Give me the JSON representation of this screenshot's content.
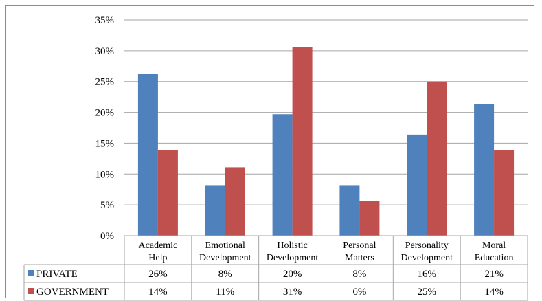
{
  "chart_data": {
    "type": "bar",
    "title": "",
    "xlabel": "",
    "ylabel": "",
    "ylim": [
      0,
      35
    ],
    "y_ticks": [
      "0%",
      "5%",
      "10%",
      "15%",
      "20%",
      "25%",
      "30%",
      "35%"
    ],
    "grid": true,
    "legend": "data-table",
    "categories": [
      [
        "Academic",
        "Help"
      ],
      [
        "Emotional",
        "Development"
      ],
      [
        "Holistic",
        "Development"
      ],
      [
        "Personal",
        "Matters"
      ],
      [
        "Personality",
        "Development"
      ],
      [
        "Moral",
        "Education"
      ]
    ],
    "series": [
      {
        "name": "PRIVATE",
        "color": "#4f81bd",
        "values": [
          26.2,
          8.2,
          19.7,
          8.2,
          16.4,
          21.3
        ],
        "labels": [
          "26%",
          "8%",
          "20%",
          "8%",
          "16%",
          "21%"
        ]
      },
      {
        "name": "GOVERNMENT",
        "color": "#c0504d",
        "values": [
          13.9,
          11.1,
          30.6,
          5.6,
          25.0,
          13.9
        ],
        "labels": [
          "14%",
          "11%",
          "31%",
          "6%",
          "25%",
          "14%"
        ]
      }
    ]
  }
}
